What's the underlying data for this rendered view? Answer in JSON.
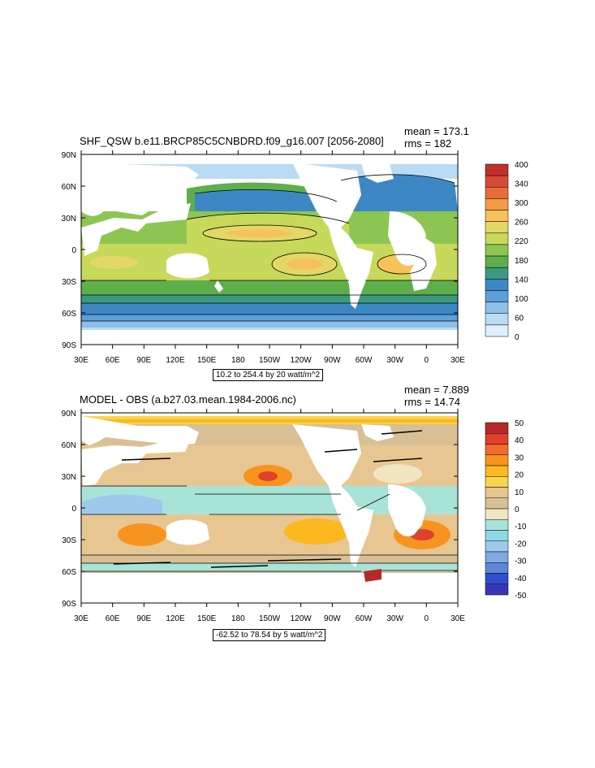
{
  "panels": [
    {
      "title": "SHF_QSW b.e11.BRCP85C5CNBDRD.f09_g16.007 [2056-2080]",
      "mean": "mean = 173.1",
      "rms": "rms = 182",
      "range": "10.2 to 254.4 by 20 watt/m^2",
      "lat_labels": [
        "90N",
        "60N",
        "30N",
        "0",
        "30S",
        "60S",
        "90S"
      ],
      "lon_labels": [
        "30E",
        "60E",
        "90E",
        "120E",
        "150E",
        "180",
        "150W",
        "120W",
        "90W",
        "60W",
        "30W",
        "0",
        "30E"
      ],
      "colorbar": {
        "labels": [
          "400",
          "340",
          "300",
          "260",
          "220",
          "180",
          "140",
          "100",
          "60",
          "0"
        ],
        "colors": [
          "#c0312b",
          "#d84a35",
          "#e86c3a",
          "#f39a45",
          "#f7c25a",
          "#e3d765",
          "#c6d95a",
          "#8dc553",
          "#5fae4c",
          "#3b9a7d",
          "#3d88c4",
          "#5d9fd8",
          "#8cc0ea",
          "#b9dcf4",
          "#dff0fb"
        ]
      }
    },
    {
      "title": "MODEL - OBS (a.b27.03.mean.1984-2006.nc)",
      "mean": "mean = 7.889",
      "rms": "rms = 14.74",
      "range": "-62.52 to 78.54 by 5 watt/m^2",
      "lat_labels": [
        "90N",
        "60N",
        "30N",
        "0",
        "30S",
        "60S",
        "90S"
      ],
      "lon_labels": [
        "30E",
        "60E",
        "90E",
        "120E",
        "150E",
        "180",
        "150W",
        "120W",
        "90W",
        "60W",
        "30W",
        "0",
        "30E"
      ],
      "colorbar": {
        "labels": [
          "50",
          "40",
          "30",
          "20",
          "10",
          "0",
          "-10",
          "-20",
          "-30",
          "-40",
          "-50"
        ],
        "colors": [
          "#b8282a",
          "#e0412f",
          "#f26b2a",
          "#f7941f",
          "#fbb81f",
          "#f9d54a",
          "#e8c691",
          "#d8bf96",
          "#f1e5c2",
          "#a8e3d8",
          "#8ed8e6",
          "#9ec9ec",
          "#7fa9e0",
          "#5d86d8",
          "#2f4fd0",
          "#3a35b8"
        ]
      }
    }
  ]
}
